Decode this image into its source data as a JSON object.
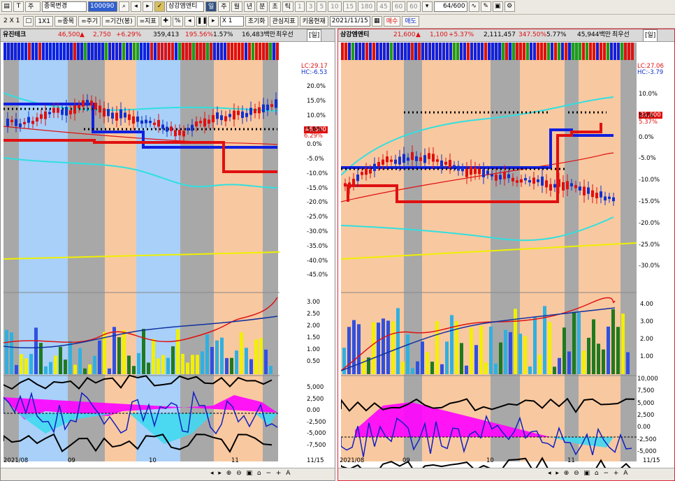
{
  "toolbar1": {
    "market": "주",
    "stock_change": "종목변경",
    "code": "100090",
    "stock_name": "삼강엠앤티",
    "period_tabs": [
      "일",
      "주",
      "월",
      "년",
      "분",
      "초",
      "틱"
    ],
    "minute_tabs": [
      "1",
      "3",
      "5",
      "10",
      "15",
      "180",
      "45",
      "60",
      "60"
    ],
    "count": "64",
    "count_total": "/600"
  },
  "toolbar2": {
    "layout": "2 X 1",
    "grid": "1X1",
    "stock_btn": "=종목",
    "cycle_btn": "=주기",
    "period_btn": "=기간(봉)",
    "indicator_btn": "=지표",
    "zoom": "X 1",
    "reset": "초기화",
    "watch": "관심지표",
    "kium_current": "키움현재",
    "date": "2021/11/15",
    "buy": "매수",
    "sell": "매도"
  },
  "left": {
    "name": "유진테크",
    "price": "46,500",
    "change": "2,750",
    "rate": "+6.29%",
    "volume": "359,413",
    "vol_ratio": "195.56%",
    "turnover": "1.57%",
    "amount": "16,483백만",
    "tag": "최우선",
    "period": "[일]",
    "lc": "LC:29.17",
    "hc": "HC:-6.53",
    "price_label": "46,500",
    "rate_label": "6.29%",
    "pct_axis": [
      "20.0%",
      "15.0%",
      "10.0%",
      "5.0%",
      "0.0%",
      "-5.0%",
      "-10.0%",
      "-15.0%",
      "-20.0%",
      "-25.0%",
      "-30.0%",
      "-35.0%",
      "-40.0%",
      "-45.0%"
    ],
    "mid_axis": [
      "3.00",
      "2.50",
      "2.00",
      "1.50",
      "1.00",
      "0.50"
    ],
    "bot_axis": [
      "5,000",
      "2,500",
      "0.00",
      "-2,500",
      "-5,000",
      "-7,500"
    ],
    "dates": [
      "2021/08",
      "09",
      "10",
      "11",
      "11/15"
    ]
  },
  "right": {
    "name": "삼강엠앤티",
    "price": "21,600",
    "change": "1,100",
    "rate": "+5.37%",
    "volume": "2,111,457",
    "vol_ratio": "347.50%",
    "turnover": "5.77%",
    "amount": "45,944백만",
    "tag": "최우선",
    "period": "[일]",
    "lc": "LC:27.06",
    "hc": "HC:-3.79",
    "price_label": "21,600",
    "rate_label": "5.37%",
    "pct_axis": [
      "10.0%",
      "5.0%",
      "0.0%",
      "-5.0%",
      "-10.0%",
      "-15.0%",
      "-20.0%",
      "-25.0%",
      "-30.0%"
    ],
    "mid_axis": [
      "4.00",
      "3.00",
      "2.00",
      "1.00"
    ],
    "bot_axis": [
      "10,000",
      "7,500",
      "5,000",
      "2,500",
      "0.00",
      "-2,500",
      "-5,000"
    ],
    "dates": [
      "2021/08",
      "09",
      "10",
      "11",
      "11/15"
    ]
  },
  "colors": {
    "up": "#e01010",
    "down": "#1030d0",
    "cyan": "#30e0e0",
    "yellow": "#f0f000",
    "magenta": "#ff00ff",
    "gray_band": "#a8a8a8",
    "orange_band": "#f8c8a0",
    "blue_band": "#a8d0f8"
  }
}
